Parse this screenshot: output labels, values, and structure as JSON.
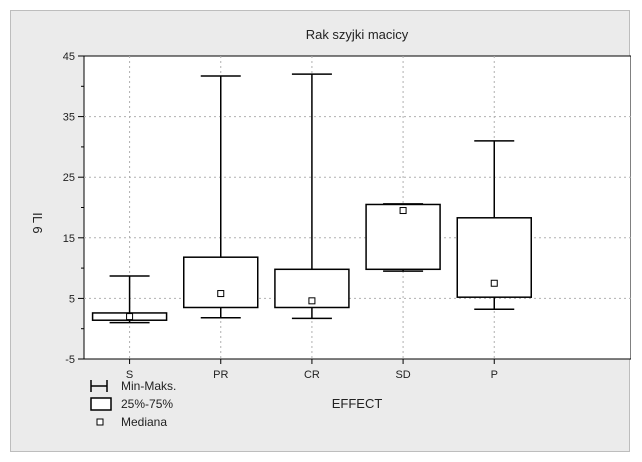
{
  "chart_data": {
    "type": "boxplot",
    "title": "Rak szyjki macicy",
    "xlabel": "EFFECT",
    "ylabel": "IL 6",
    "ylim": [
      -5,
      45
    ],
    "yticks": [
      -5,
      5,
      15,
      25,
      35,
      45
    ],
    "categories": [
      "S",
      "PR",
      "CR",
      "SD",
      "P"
    ],
    "boxes": [
      {
        "category": "S",
        "min": 1.0,
        "q1": 1.4,
        "median": 2.0,
        "q3": 2.6,
        "max": 8.7
      },
      {
        "category": "PR",
        "min": 1.8,
        "q1": 3.5,
        "median": 5.8,
        "q3": 11.8,
        "max": 41.7
      },
      {
        "category": "CR",
        "min": 1.7,
        "q1": 3.5,
        "median": 4.6,
        "q3": 9.8,
        "max": 42.0
      },
      {
        "category": "SD",
        "min": 9.5,
        "q1": 9.8,
        "median": 19.5,
        "q3": 20.5,
        "max": 20.6
      },
      {
        "category": "P",
        "min": 3.2,
        "q1": 5.2,
        "median": 7.5,
        "q3": 18.3,
        "max": 31.0
      }
    ],
    "grid": true,
    "legend": {
      "position": "bottom-left",
      "items": [
        {
          "symbol": "whisker",
          "label": "Min-Maks."
        },
        {
          "symbol": "box",
          "label": "25%-75%"
        },
        {
          "symbol": "square",
          "label": "Mediana"
        }
      ]
    },
    "colors": {
      "panel": "#ebebeb",
      "plot": "#ffffff",
      "box": "#ffffff",
      "line": "#000000",
      "grid": "#b0b0b0"
    }
  }
}
